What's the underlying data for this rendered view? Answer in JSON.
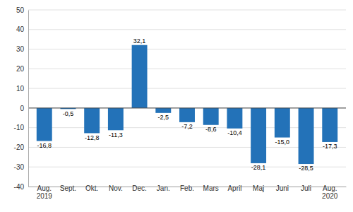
{
  "chart_data": {
    "type": "bar",
    "categories": [
      "Aug.\n2019",
      "Sept.",
      "Okt.",
      "Nov.",
      "Dec.",
      "Jan.",
      "Feb.",
      "Mars",
      "April",
      "Maj",
      "Juni",
      "Juli",
      "Aug.\n2020"
    ],
    "values": [
      -16.8,
      -0.5,
      -12.8,
      -11.3,
      32.1,
      -2.5,
      -7.2,
      -8.6,
      -10.4,
      -28.1,
      -15.0,
      -28.5,
      -17.3
    ],
    "value_labels": [
      "-16,8",
      "-0,5",
      "-12,8",
      "-11,3",
      "32,1",
      "-2,5",
      "-7,2",
      "-8,6",
      "-10,4",
      "-28,1",
      "-15,0",
      "-28,5",
      "-17,3"
    ],
    "data_labels": true,
    "color": "#2372b8",
    "ylim": [
      -40,
      50
    ],
    "yticks": [
      -40,
      -30,
      -20,
      -10,
      0,
      10,
      20,
      30,
      40,
      50
    ],
    "grid": true
  }
}
